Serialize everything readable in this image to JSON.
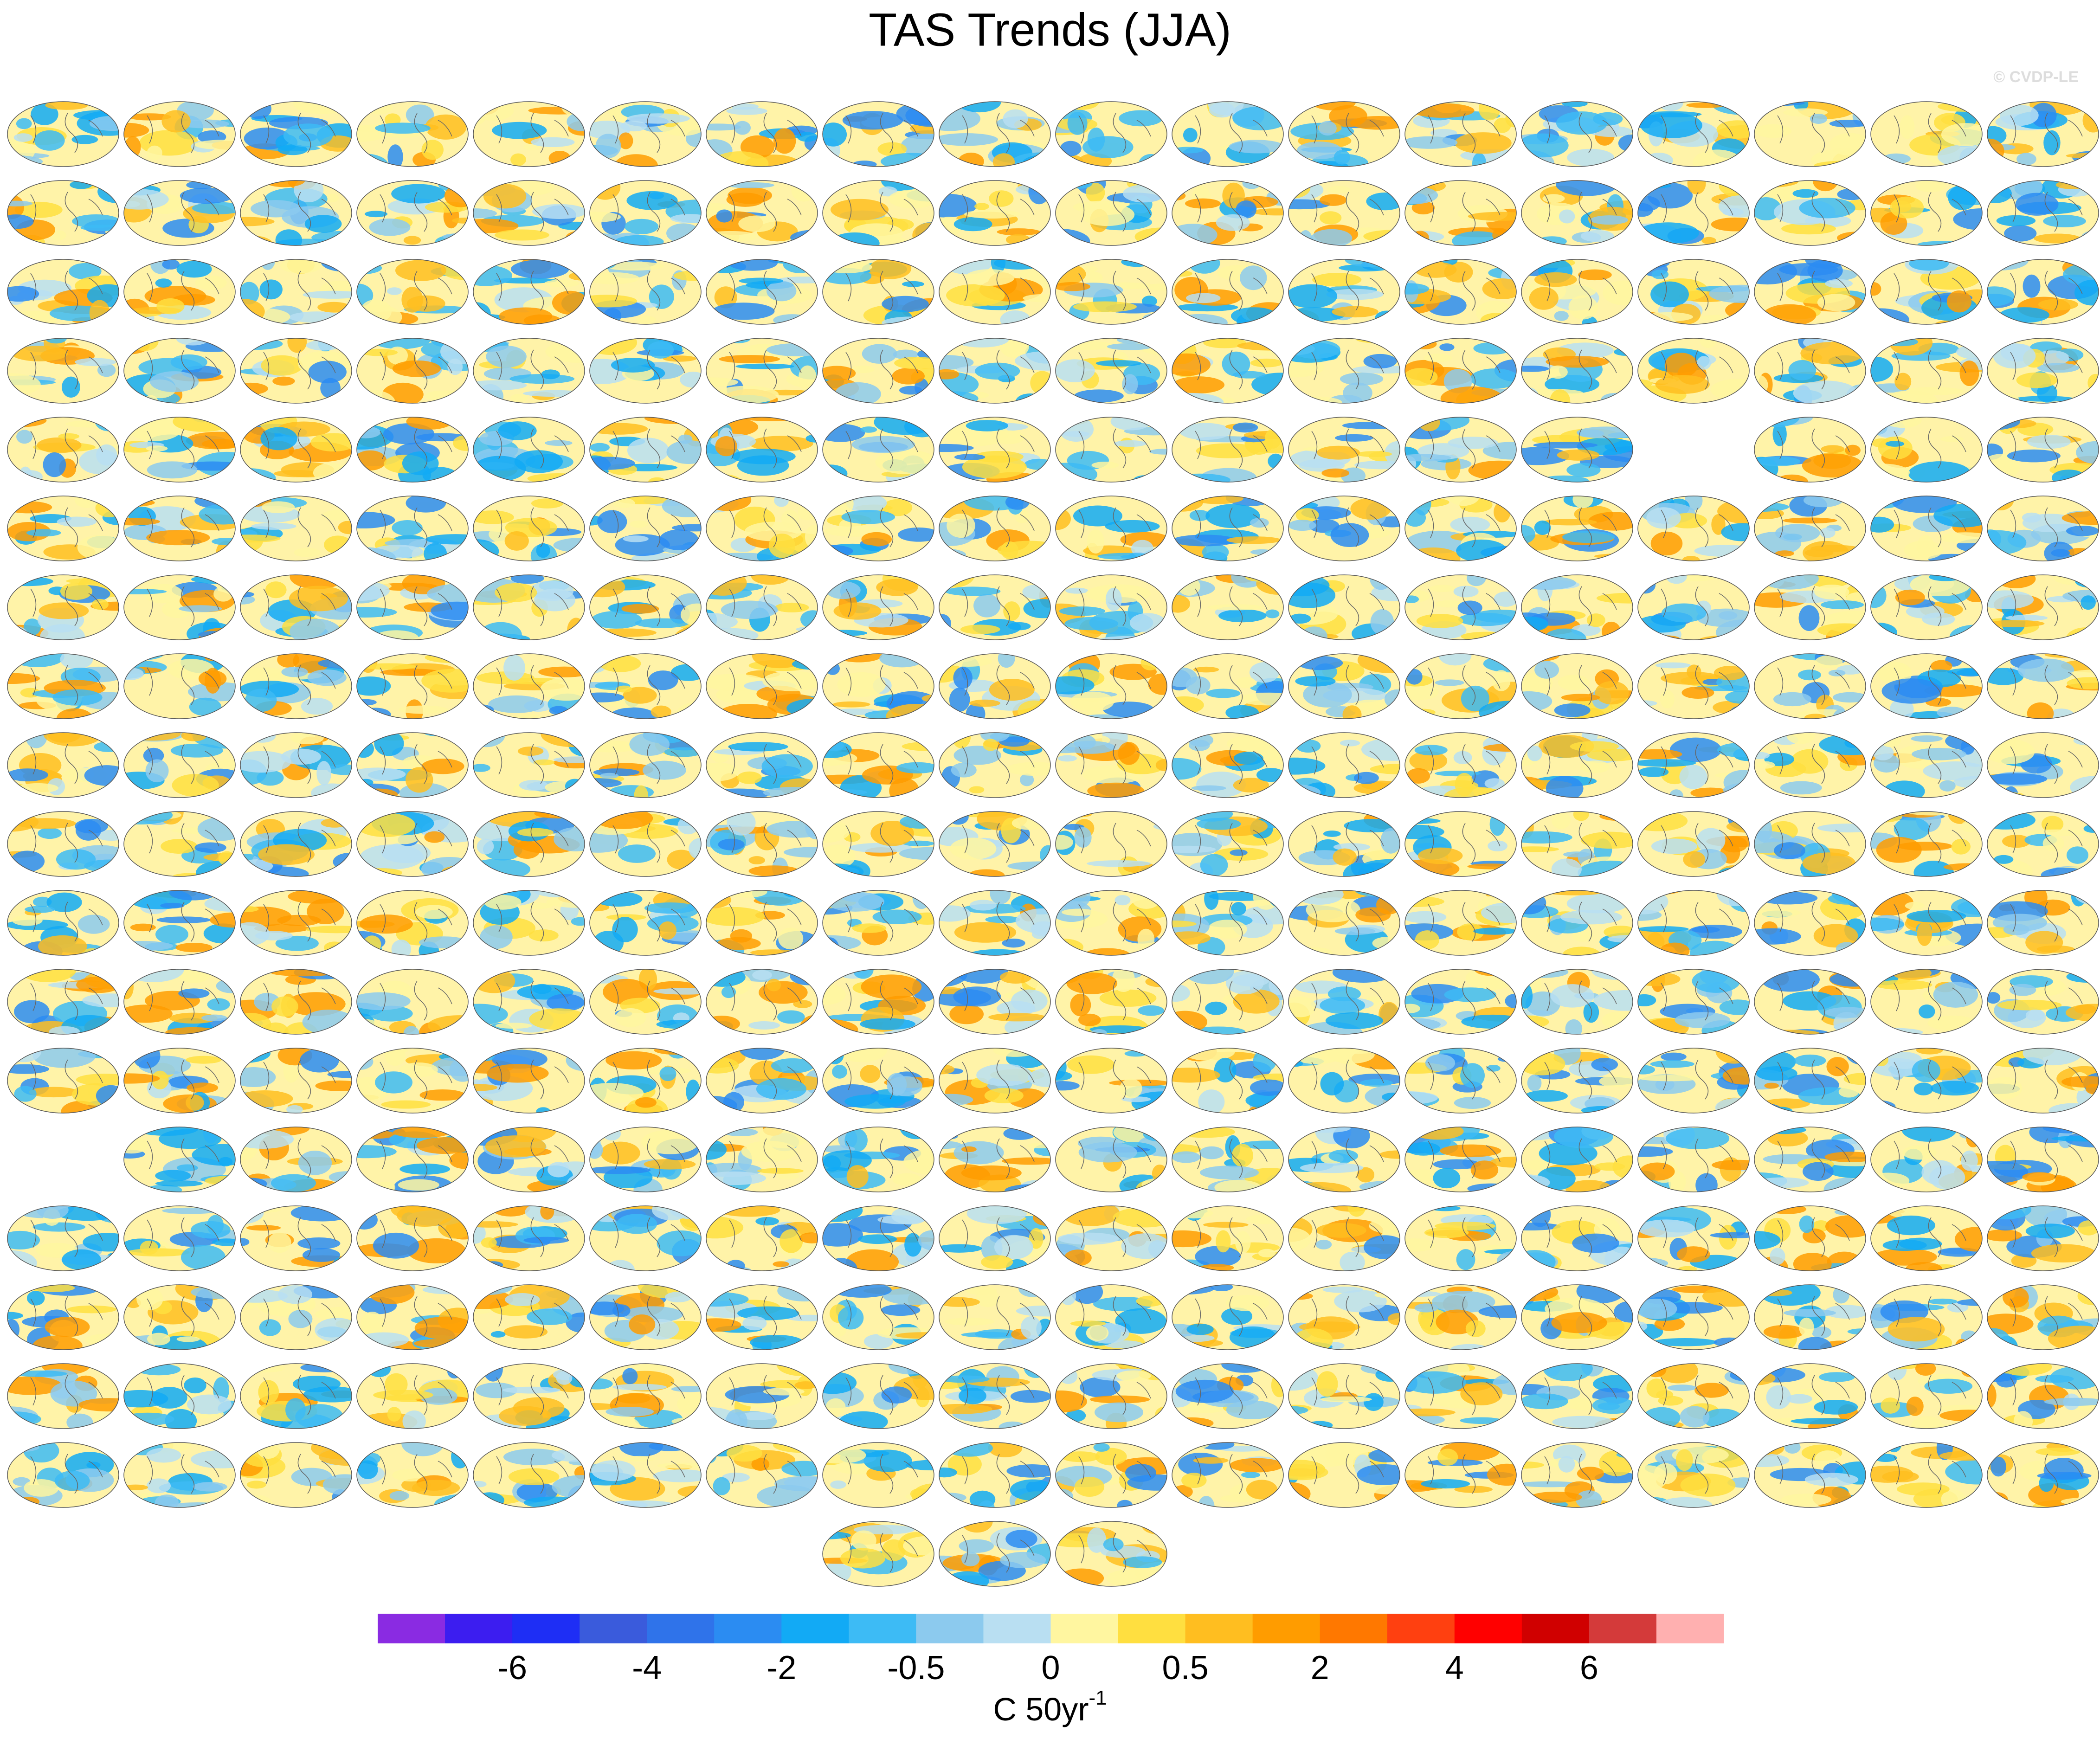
{
  "chart_data": {
    "type": "map",
    "title": "TAS Trends (JJA)",
    "watermark": "© CVDP-LE",
    "colorbar": {
      "colors": [
        "#8a2be2",
        "#3c1df0",
        "#1e2ef5",
        "#3a5bdc",
        "#2f73ea",
        "#2b8cf2",
        "#12aaf5",
        "#3dbbf5",
        "#8ccaee",
        "#b9dff2",
        "#fff6a0",
        "#ffdf40",
        "#ffbe20",
        "#ff9c00",
        "#ff7800",
        "#ff4010",
        "#ff0000",
        "#d00000",
        "#d43a3a",
        "#ffb0b0"
      ],
      "ticks": [
        -6,
        -4,
        -2,
        -0.5,
        0,
        0.5,
        2,
        4,
        6
      ],
      "unit": "C 50yr",
      "unit_superscript": "-1"
    }
  }
}
